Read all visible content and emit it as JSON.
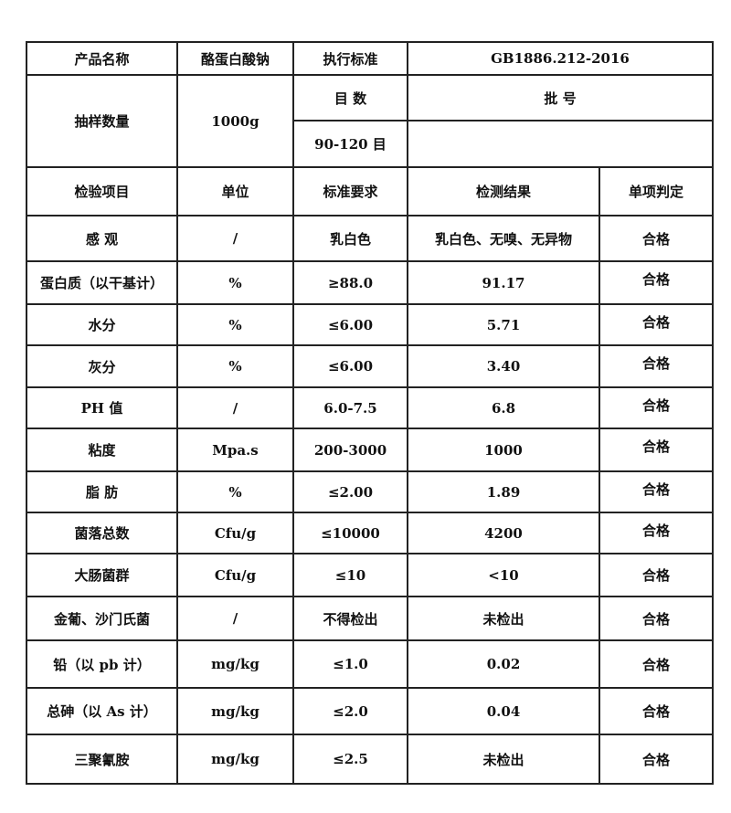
{
  "header": {
    "product_name_label": "产品名称",
    "product_name": "酪蛋白酸钠",
    "standard_label": "执行标准",
    "standard": "GB1886.212-2016",
    "sample_qty_label": "抽样数量",
    "sample_qty": "1000g",
    "mesh_label": "目 数",
    "mesh": "90-120 目",
    "batch_label": "批 号",
    "batch": ""
  },
  "columns": [
    "检验项目",
    "单位",
    "标准要求",
    "检测结果",
    "单项判定"
  ],
  "rows": [
    {
      "item": "感 观",
      "unit": "/",
      "req": "乳白色",
      "result": "乳白色、无嗅、无异物",
      "verdict": "合格"
    },
    {
      "item": "蛋白质（以干基计）",
      "unit": "%",
      "req": "≥88.0",
      "result": "91.17",
      "verdict": "合格"
    },
    {
      "item": "水分",
      "unit": "%",
      "req": "≤6.00",
      "result": "5.71",
      "verdict": "合格"
    },
    {
      "item": "灰分",
      "unit": "%",
      "req": "≤6.00",
      "result": "3.40",
      "verdict": "合格"
    },
    {
      "item": "PH 值",
      "unit": "/",
      "req": "6.0-7.5",
      "result": "6.8",
      "verdict": "合格"
    },
    {
      "item": "粘度",
      "unit": "Mpa.s",
      "req": "200-3000",
      "result": "1000",
      "verdict": "合格"
    },
    {
      "item": "脂 肪",
      "unit": "%",
      "req": "≤2.00",
      "result": "1.89",
      "verdict": "合格"
    },
    {
      "item": "菌落总数",
      "unit": "Cfu/g",
      "req": "≤10000",
      "result": "4200",
      "verdict": "合格"
    },
    {
      "item": "大肠菌群",
      "unit": "Cfu/g",
      "req": "≤10",
      "result": "<10",
      "verdict": "合格"
    },
    {
      "item": "金葡、沙门氏菌",
      "unit": "/",
      "req": "不得检出",
      "result": "未检出",
      "verdict": "合格"
    },
    {
      "item": "铅（以 pb 计）",
      "unit": "mg/kg",
      "req": "≤1.0",
      "result": "0.02",
      "verdict": "合格"
    },
    {
      "item": "总砷（以 As 计）",
      "unit": "mg/kg",
      "req": "≤2.0",
      "result": "0.04",
      "verdict": "合格"
    },
    {
      "item": "三聚氰胺",
      "unit": "mg/kg",
      "req": "≤2.5",
      "result": "未检出",
      "verdict": "合格"
    }
  ]
}
